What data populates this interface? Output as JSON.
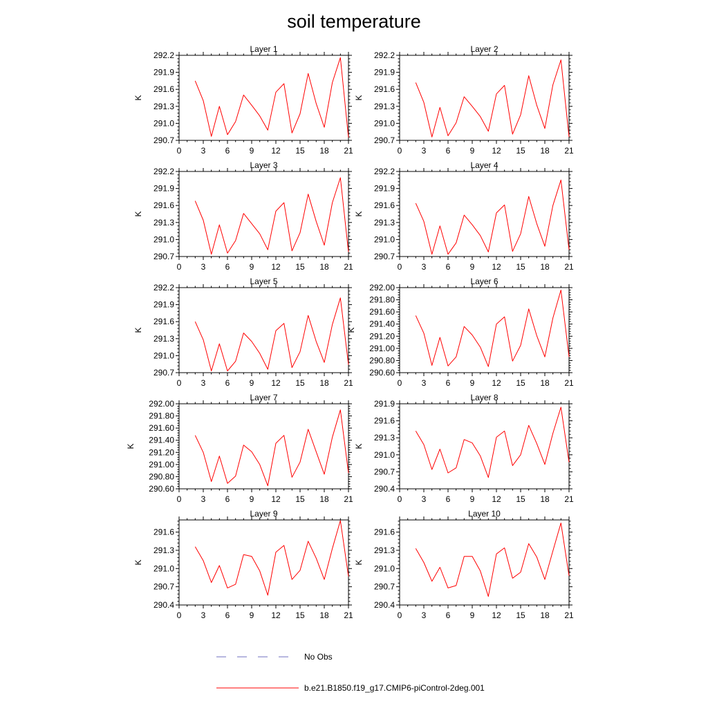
{
  "title": "soil temperature",
  "colors": {
    "model": "#ff0000",
    "obs": "#6f6fbf",
    "axis": "#000000"
  },
  "legend": {
    "obs_label": "No Obs",
    "model_label": "b.e21.B1850.f19_g17.CMIP6-piControl-2deg.001"
  },
  "chart_data": [
    {
      "type": "line",
      "title": "Layer 1",
      "ylabel": "K",
      "xlim": [
        0,
        21
      ],
      "ylim": [
        290.7,
        292.2
      ],
      "xticks": [
        "0",
        "3",
        "6",
        "9",
        "12",
        "15",
        "18",
        "21"
      ],
      "yticks": [
        "290.7",
        "291.0",
        "291.3",
        "291.6",
        "291.9",
        "292.2"
      ],
      "series": [
        {
          "name": "b.e21.B1850.f19_g17.CMIP6-piControl-2deg.001",
          "x": [
            2,
            3,
            4,
            5,
            6,
            7,
            8,
            9,
            10,
            11,
            12,
            13,
            14,
            15,
            16,
            17,
            18,
            19,
            20,
            21
          ],
          "y": [
            291.75,
            291.4,
            290.77,
            291.3,
            290.8,
            291.03,
            291.5,
            291.32,
            291.13,
            290.88,
            291.55,
            291.7,
            290.83,
            291.17,
            291.88,
            291.35,
            290.93,
            291.72,
            292.16,
            290.75
          ]
        }
      ]
    },
    {
      "type": "line",
      "title": "Layer 2",
      "ylabel": "K",
      "xlim": [
        0,
        21
      ],
      "ylim": [
        290.7,
        292.2
      ],
      "xticks": [
        "0",
        "3",
        "6",
        "9",
        "12",
        "15",
        "18",
        "21"
      ],
      "yticks": [
        "290.7",
        "291.0",
        "291.3",
        "291.6",
        "291.9",
        "292.2"
      ],
      "series": [
        {
          "name": "b.e21.B1850.f19_g17.CMIP6-piControl-2deg.001",
          "x": [
            2,
            3,
            4,
            5,
            6,
            7,
            8,
            9,
            10,
            11,
            12,
            13,
            14,
            15,
            16,
            17,
            18,
            19,
            20,
            21
          ],
          "y": [
            291.72,
            291.37,
            290.76,
            291.28,
            290.78,
            291.01,
            291.47,
            291.3,
            291.12,
            290.86,
            291.52,
            291.67,
            290.81,
            291.15,
            291.84,
            291.32,
            290.91,
            291.68,
            292.12,
            290.76
          ]
        }
      ]
    },
    {
      "type": "line",
      "title": "Layer 3",
      "ylabel": "K",
      "xlim": [
        0,
        21
      ],
      "ylim": [
        290.7,
        292.2
      ],
      "xticks": [
        "0",
        "3",
        "6",
        "9",
        "12",
        "15",
        "18",
        "21"
      ],
      "yticks": [
        "290.7",
        "291.0",
        "291.3",
        "291.6",
        "291.9",
        "292.2"
      ],
      "series": [
        {
          "name": "b.e21.B1850.f19_g17.CMIP6-piControl-2deg.001",
          "x": [
            2,
            3,
            4,
            5,
            6,
            7,
            8,
            9,
            10,
            11,
            12,
            13,
            14,
            15,
            16,
            17,
            18,
            19,
            20,
            21
          ],
          "y": [
            291.68,
            291.34,
            290.74,
            291.26,
            290.76,
            290.98,
            291.46,
            291.28,
            291.1,
            290.82,
            291.5,
            291.65,
            290.8,
            291.12,
            291.8,
            291.32,
            290.9,
            291.65,
            292.09,
            290.78
          ]
        }
      ]
    },
    {
      "type": "line",
      "title": "Layer 4",
      "ylabel": "K",
      "xlim": [
        0,
        21
      ],
      "ylim": [
        290.7,
        292.2
      ],
      "xticks": [
        "0",
        "3",
        "6",
        "9",
        "12",
        "15",
        "18",
        "21"
      ],
      "yticks": [
        "290.7",
        "291.0",
        "291.3",
        "291.6",
        "291.9",
        "292.2"
      ],
      "series": [
        {
          "name": "b.e21.B1850.f19_g17.CMIP6-piControl-2deg.001",
          "x": [
            2,
            3,
            4,
            5,
            6,
            7,
            8,
            9,
            10,
            11,
            12,
            13,
            14,
            15,
            16,
            17,
            18,
            19,
            20,
            21
          ],
          "y": [
            291.64,
            291.32,
            290.74,
            291.24,
            290.74,
            290.94,
            291.43,
            291.26,
            291.07,
            290.78,
            291.47,
            291.61,
            290.79,
            291.1,
            291.76,
            291.28,
            290.88,
            291.6,
            292.05,
            290.82
          ]
        }
      ]
    },
    {
      "type": "line",
      "title": "Layer 5",
      "ylabel": "K",
      "xlim": [
        0,
        21
      ],
      "ylim": [
        290.7,
        292.2
      ],
      "xticks": [
        "0",
        "3",
        "6",
        "9",
        "12",
        "15",
        "18",
        "21"
      ],
      "yticks": [
        "290.7",
        "291.0",
        "291.3",
        "291.6",
        "291.9",
        "292.2"
      ],
      "series": [
        {
          "name": "b.e21.B1850.f19_g17.CMIP6-piControl-2deg.001",
          "x": [
            2,
            3,
            4,
            5,
            6,
            7,
            8,
            9,
            10,
            11,
            12,
            13,
            14,
            15,
            16,
            17,
            18,
            19,
            20,
            21
          ],
          "y": [
            291.6,
            291.28,
            290.73,
            291.21,
            290.73,
            290.9,
            291.4,
            291.25,
            291.04,
            290.76,
            291.44,
            291.57,
            290.79,
            291.07,
            291.71,
            291.25,
            290.88,
            291.55,
            292.02,
            290.84
          ]
        }
      ]
    },
    {
      "type": "line",
      "title": "Layer 6",
      "ylabel": "K",
      "xlim": [
        0,
        21
      ],
      "ylim": [
        290.6,
        292.0
      ],
      "xticks": [
        "0",
        "3",
        "6",
        "9",
        "12",
        "15",
        "18",
        "21"
      ],
      "yticks": [
        "290.60",
        "290.80",
        "291.00",
        "291.20",
        "291.40",
        "291.60",
        "291.80",
        "292.00"
      ],
      "series": [
        {
          "name": "b.e21.B1850.f19_g17.CMIP6-piControl-2deg.001",
          "x": [
            2,
            3,
            4,
            5,
            6,
            7,
            8,
            9,
            10,
            11,
            12,
            13,
            14,
            15,
            16,
            17,
            18,
            19,
            20,
            21
          ],
          "y": [
            291.54,
            291.25,
            290.72,
            291.18,
            290.71,
            290.86,
            291.36,
            291.22,
            291.02,
            290.7,
            291.4,
            291.52,
            290.79,
            291.05,
            291.65,
            291.21,
            290.86,
            291.5,
            291.96,
            290.86
          ]
        }
      ]
    },
    {
      "type": "line",
      "title": "Layer 7",
      "ylabel": "K",
      "xlim": [
        0,
        21
      ],
      "ylim": [
        290.6,
        292.0
      ],
      "xticks": [
        "0",
        "3",
        "6",
        "9",
        "12",
        "15",
        "18",
        "21"
      ],
      "yticks": [
        "290.60",
        "290.80",
        "291.00",
        "291.20",
        "291.40",
        "291.60",
        "291.80",
        "292.00"
      ],
      "series": [
        {
          "name": "b.e21.B1850.f19_g17.CMIP6-piControl-2deg.001",
          "x": [
            2,
            3,
            4,
            5,
            6,
            7,
            8,
            9,
            10,
            11,
            12,
            13,
            14,
            15,
            16,
            17,
            18,
            19,
            20,
            21
          ],
          "y": [
            291.48,
            291.2,
            290.72,
            291.14,
            290.69,
            290.81,
            291.32,
            291.21,
            291.0,
            290.65,
            291.35,
            291.48,
            290.79,
            291.04,
            291.58,
            291.21,
            290.84,
            291.45,
            291.9,
            290.86
          ]
        }
      ]
    },
    {
      "type": "line",
      "title": "Layer 8",
      "ylabel": "K",
      "xlim": [
        0,
        21
      ],
      "ylim": [
        290.4,
        291.9
      ],
      "xticks": [
        "0",
        "3",
        "6",
        "9",
        "12",
        "15",
        "18",
        "21"
      ],
      "yticks": [
        "290.4",
        "290.7",
        "291.0",
        "291.3",
        "291.6",
        "291.9"
      ],
      "series": [
        {
          "name": "b.e21.B1850.f19_g17.CMIP6-piControl-2deg.001",
          "x": [
            2,
            3,
            4,
            5,
            6,
            7,
            8,
            9,
            10,
            11,
            12,
            13,
            14,
            15,
            16,
            17,
            18,
            19,
            20,
            21
          ],
          "y": [
            291.42,
            291.18,
            290.74,
            291.1,
            290.68,
            290.77,
            291.27,
            291.21,
            290.98,
            290.6,
            291.31,
            291.42,
            290.81,
            291.0,
            291.52,
            291.2,
            290.83,
            291.38,
            291.84,
            290.87
          ]
        }
      ]
    },
    {
      "type": "line",
      "title": "Layer 9",
      "ylabel": "K",
      "xlim": [
        0,
        21
      ],
      "ylim": [
        290.4,
        291.8
      ],
      "xticks": [
        "0",
        "3",
        "6",
        "9",
        "12",
        "15",
        "18",
        "21"
      ],
      "yticks": [
        "290.4",
        "290.7",
        "291.0",
        "291.3",
        "291.6"
      ],
      "series": [
        {
          "name": "b.e21.B1850.f19_g17.CMIP6-piControl-2deg.001",
          "x": [
            2,
            3,
            4,
            5,
            6,
            7,
            8,
            9,
            10,
            11,
            12,
            13,
            14,
            15,
            16,
            17,
            18,
            19,
            20,
            21
          ],
          "y": [
            291.36,
            291.13,
            290.77,
            291.05,
            290.68,
            290.74,
            291.23,
            291.2,
            290.96,
            290.56,
            291.27,
            291.38,
            290.82,
            290.97,
            291.45,
            291.17,
            290.82,
            291.33,
            291.79,
            290.87
          ]
        }
      ]
    },
    {
      "type": "line",
      "title": "Layer 10",
      "ylabel": "K",
      "xlim": [
        0,
        21
      ],
      "ylim": [
        290.4,
        291.8
      ],
      "xticks": [
        "0",
        "3",
        "6",
        "9",
        "12",
        "15",
        "18",
        "21"
      ],
      "yticks": [
        "290.4",
        "290.7",
        "291.0",
        "291.3",
        "291.6"
      ],
      "series": [
        {
          "name": "b.e21.B1850.f19_g17.CMIP6-piControl-2deg.001",
          "x": [
            2,
            3,
            4,
            5,
            6,
            7,
            8,
            9,
            10,
            11,
            12,
            13,
            14,
            15,
            16,
            17,
            18,
            19,
            20,
            21
          ],
          "y": [
            291.33,
            291.1,
            290.79,
            291.02,
            290.68,
            290.72,
            291.2,
            291.2,
            290.96,
            290.54,
            291.24,
            291.34,
            290.84,
            290.94,
            291.41,
            291.19,
            290.82,
            291.29,
            291.75,
            290.88
          ]
        }
      ]
    }
  ]
}
